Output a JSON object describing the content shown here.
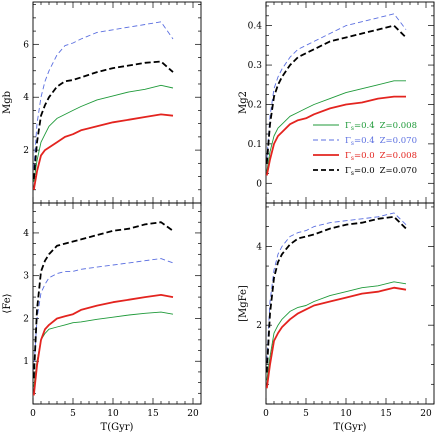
{
  "colors": {
    "green": "#1f9a3a",
    "blue": "#5b6fe0",
    "red": "#e3241f",
    "black": "#000000"
  },
  "legend": {
    "placement": "lower-right of top-right panel",
    "entries": [
      {
        "series": "g04_z008",
        "gamma_label": "Γ",
        "sub": "s",
        "gamma_value": "=0.4",
        "z_text": "Z=0.008"
      },
      {
        "series": "g04_z070",
        "gamma_label": "Γ",
        "sub": "s",
        "gamma_value": "=0.4",
        "z_text": "Z=0.070"
      },
      {
        "series": "g00_z008",
        "gamma_label": "Γ",
        "sub": "s",
        "gamma_value": "=0.0",
        "z_text": "Z=0.008"
      },
      {
        "series": "g00_z070",
        "gamma_label": "Γ",
        "sub": "s",
        "gamma_value": "=0.0",
        "z_text": "Z=0.070"
      }
    ]
  },
  "series_styles": {
    "g04_z008": {
      "color": "#1f9a3a",
      "dash": "solid",
      "weight": "thin"
    },
    "g04_z070": {
      "color": "#5b6fe0",
      "dash": "dashed",
      "weight": "thin"
    },
    "g00_z008": {
      "color": "#e3241f",
      "dash": "solid",
      "weight": "thick"
    },
    "g00_z070": {
      "color": "#000000",
      "dash": "dashed",
      "weight": "thick"
    }
  },
  "chart_data": [
    {
      "type": "line",
      "panel": "top-left",
      "ylabel": "Mgb",
      "xlabel": "",
      "xlim": [
        0,
        21
      ],
      "ylim": [
        0,
        7.6
      ],
      "yticks": [
        "2",
        "4",
        "6"
      ],
      "ytick_values": [
        2,
        4,
        6
      ],
      "xticks": [],
      "xtick_values": [],
      "series": [
        {
          "key": "g04_z008",
          "x": [
            0.1,
            0.5,
            1,
            1.5,
            2,
            3,
            4,
            5,
            6,
            8,
            10,
            12,
            14,
            16,
            17.5
          ],
          "y": [
            0.8,
            1.6,
            2.3,
            2.6,
            2.9,
            3.2,
            3.35,
            3.5,
            3.65,
            3.9,
            4.05,
            4.2,
            4.3,
            4.45,
            4.35
          ]
        },
        {
          "key": "g04_z070",
          "x": [
            0.1,
            0.5,
            1,
            1.5,
            2,
            3,
            4,
            5,
            6,
            8,
            10,
            12,
            14,
            16,
            17.5
          ],
          "y": [
            1.3,
            3.0,
            4.0,
            4.6,
            5.0,
            5.6,
            5.95,
            6.05,
            6.2,
            6.45,
            6.55,
            6.65,
            6.75,
            6.85,
            6.2
          ]
        },
        {
          "key": "g00_z008",
          "x": [
            0.1,
            0.5,
            1,
            1.5,
            2,
            3,
            4,
            5,
            6,
            8,
            10,
            12,
            14,
            16,
            17.5
          ],
          "y": [
            0.5,
            1.2,
            1.8,
            2.0,
            2.1,
            2.3,
            2.5,
            2.6,
            2.75,
            2.9,
            3.05,
            3.15,
            3.25,
            3.35,
            3.3
          ]
        },
        {
          "key": "g00_z070",
          "x": [
            0.1,
            0.5,
            1,
            1.5,
            2,
            3,
            4,
            5,
            6,
            8,
            10,
            12,
            14,
            16,
            17.5
          ],
          "y": [
            0.9,
            2.3,
            3.3,
            3.7,
            4.0,
            4.4,
            4.6,
            4.65,
            4.75,
            4.95,
            5.1,
            5.2,
            5.3,
            5.35,
            4.95
          ]
        }
      ]
    },
    {
      "type": "line",
      "panel": "top-right",
      "ylabel": "Mg2",
      "xlabel": "",
      "xlim": [
        0,
        21
      ],
      "ylim": [
        -0.05,
        0.46
      ],
      "yticks": [
        "0",
        "0.1",
        "0.2",
        "0.3",
        "0.4"
      ],
      "ytick_values": [
        0,
        0.1,
        0.2,
        0.3,
        0.4
      ],
      "xticks": [],
      "xtick_values": [],
      "series": [
        {
          "key": "g04_z008",
          "x": [
            0.1,
            0.5,
            1,
            1.5,
            2,
            3,
            4,
            5,
            6,
            8,
            10,
            12,
            14,
            16,
            17.5
          ],
          "y": [
            0.03,
            0.08,
            0.12,
            0.14,
            0.15,
            0.17,
            0.18,
            0.19,
            0.2,
            0.215,
            0.23,
            0.24,
            0.25,
            0.26,
            0.26
          ]
        },
        {
          "key": "g04_z070",
          "x": [
            0.1,
            0.5,
            1,
            1.5,
            2,
            3,
            4,
            5,
            6,
            8,
            10,
            12,
            14,
            16,
            17.5
          ],
          "y": [
            0.06,
            0.17,
            0.24,
            0.27,
            0.29,
            0.32,
            0.34,
            0.35,
            0.36,
            0.38,
            0.4,
            0.41,
            0.42,
            0.43,
            0.39
          ]
        },
        {
          "key": "g00_z008",
          "x": [
            0.1,
            0.5,
            1,
            1.5,
            2,
            3,
            4,
            5,
            6,
            8,
            10,
            12,
            14,
            16,
            17.5
          ],
          "y": [
            0.02,
            0.06,
            0.1,
            0.12,
            0.13,
            0.15,
            0.16,
            0.165,
            0.175,
            0.19,
            0.2,
            0.205,
            0.215,
            0.22,
            0.22
          ]
        },
        {
          "key": "g00_z070",
          "x": [
            0.1,
            0.5,
            1,
            1.5,
            2,
            3,
            4,
            5,
            6,
            8,
            10,
            12,
            14,
            16,
            17.5
          ],
          "y": [
            0.05,
            0.15,
            0.22,
            0.25,
            0.27,
            0.3,
            0.32,
            0.33,
            0.34,
            0.36,
            0.37,
            0.38,
            0.39,
            0.4,
            0.37
          ]
        }
      ]
    },
    {
      "type": "line",
      "panel": "bottom-left",
      "ylabel": "⟨Fe⟩",
      "xlabel": "T(Gyr)",
      "xlim": [
        0,
        21
      ],
      "ylim": [
        0,
        4.7
      ],
      "yticks": [
        "1",
        "2",
        "3",
        "4"
      ],
      "ytick_values": [
        1,
        2,
        3,
        4
      ],
      "xticks": [
        "0",
        "5",
        "10",
        "15",
        "20"
      ],
      "xtick_values": [
        0,
        5,
        10,
        15,
        20
      ],
      "series": [
        {
          "key": "g04_z008",
          "x": [
            0.1,
            0.5,
            1,
            1.5,
            2,
            3,
            4,
            5,
            6,
            8,
            10,
            12,
            14,
            16,
            17.5
          ],
          "y": [
            0.4,
            1.0,
            1.5,
            1.65,
            1.75,
            1.8,
            1.85,
            1.9,
            1.92,
            1.98,
            2.03,
            2.08,
            2.12,
            2.15,
            2.1
          ]
        },
        {
          "key": "g04_z070",
          "x": [
            0.1,
            0.5,
            1,
            1.5,
            2,
            3,
            4,
            5,
            6,
            8,
            10,
            12,
            14,
            16,
            17.5
          ],
          "y": [
            0.8,
            2.0,
            2.6,
            2.8,
            2.95,
            3.05,
            3.1,
            3.1,
            3.15,
            3.2,
            3.25,
            3.3,
            3.35,
            3.4,
            3.3
          ]
        },
        {
          "key": "g00_z008",
          "x": [
            0.1,
            0.5,
            1,
            1.5,
            2,
            3,
            4,
            5,
            6,
            8,
            10,
            12,
            14,
            16,
            17.5
          ],
          "y": [
            0.2,
            0.9,
            1.5,
            1.75,
            1.85,
            2.0,
            2.05,
            2.1,
            2.2,
            2.3,
            2.38,
            2.44,
            2.5,
            2.55,
            2.5
          ]
        },
        {
          "key": "g00_z070",
          "x": [
            0.1,
            0.5,
            1,
            1.5,
            2,
            3,
            4,
            5,
            6,
            8,
            10,
            12,
            14,
            16,
            17.5
          ],
          "y": [
            0.6,
            2.2,
            3.1,
            3.35,
            3.5,
            3.7,
            3.75,
            3.8,
            3.85,
            3.95,
            4.05,
            4.1,
            4.2,
            4.25,
            4.05
          ]
        }
      ]
    },
    {
      "type": "line",
      "panel": "bottom-right",
      "ylabel": "[MgFe]",
      "xlabel": "T(Gyr)",
      "xlim": [
        0,
        21
      ],
      "ylim": [
        0,
        5.1
      ],
      "yticks": [
        "2",
        "4"
      ],
      "ytick_values": [
        2,
        4
      ],
      "xticks": [
        "0",
        "5",
        "10",
        "15",
        "20"
      ],
      "xtick_values": [
        0,
        5,
        10,
        15,
        20
      ],
      "series": [
        {
          "key": "g04_z008",
          "x": [
            0.1,
            0.5,
            1,
            1.5,
            2,
            3,
            4,
            5,
            6,
            8,
            10,
            12,
            14,
            16,
            17.5
          ],
          "y": [
            0.6,
            1.2,
            1.8,
            2.0,
            2.15,
            2.35,
            2.45,
            2.5,
            2.6,
            2.75,
            2.85,
            2.95,
            3.0,
            3.1,
            3.05
          ]
        },
        {
          "key": "g04_z070",
          "x": [
            0.1,
            0.5,
            1,
            1.5,
            2,
            3,
            4,
            5,
            6,
            8,
            10,
            12,
            14,
            16,
            17.5
          ],
          "y": [
            1.1,
            2.6,
            3.4,
            3.8,
            4.0,
            4.25,
            4.35,
            4.4,
            4.5,
            4.6,
            4.65,
            4.7,
            4.75,
            4.85,
            4.55
          ]
        },
        {
          "key": "g00_z008",
          "x": [
            0.1,
            0.5,
            1,
            1.5,
            2,
            3,
            4,
            5,
            6,
            8,
            10,
            12,
            14,
            16,
            17.5
          ],
          "y": [
            0.4,
            1.0,
            1.6,
            1.8,
            1.95,
            2.15,
            2.3,
            2.4,
            2.5,
            2.6,
            2.7,
            2.8,
            2.85,
            2.95,
            2.9
          ]
        },
        {
          "key": "g00_z070",
          "x": [
            0.1,
            0.5,
            1,
            1.5,
            2,
            3,
            4,
            5,
            6,
            8,
            10,
            12,
            14,
            16,
            17.5
          ],
          "y": [
            0.8,
            2.3,
            3.2,
            3.6,
            3.8,
            4.05,
            4.2,
            4.25,
            4.3,
            4.45,
            4.55,
            4.6,
            4.7,
            4.75,
            4.45
          ]
        }
      ]
    }
  ]
}
